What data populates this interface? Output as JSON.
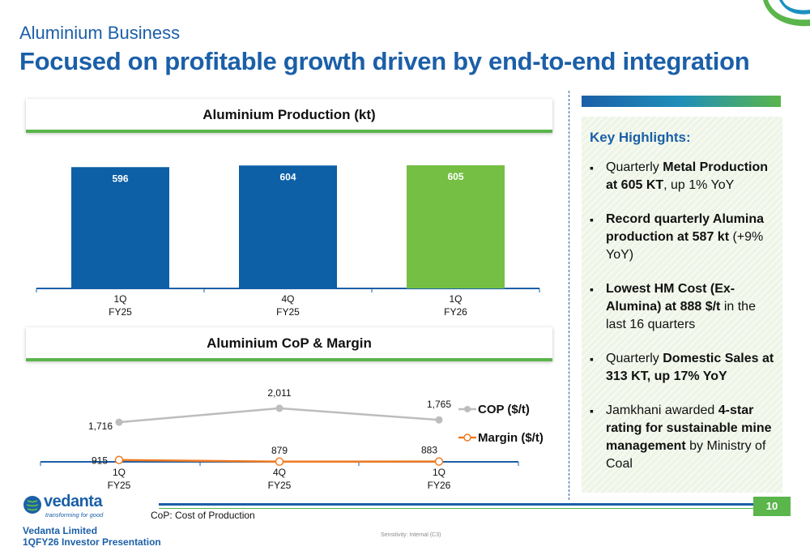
{
  "header": {
    "subtitle": "Aluminium Business",
    "headline": "Focused on profitable growth driven by end-to-end integration"
  },
  "colors": {
    "brand_blue": "#1b5fa8",
    "accent_green": "#5ab54b",
    "bar_blue": "#0d5fa6",
    "bar_green": "#74bf44",
    "cop_line": "#bdbdbd",
    "margin_line": "#f07a22"
  },
  "chart_data": [
    {
      "type": "bar",
      "title": "Aluminium Production (kt)",
      "categories": [
        [
          "1Q",
          "FY25"
        ],
        [
          "4Q",
          "FY25"
        ],
        [
          "1Q",
          "FY26"
        ]
      ],
      "values": [
        596,
        604,
        605
      ],
      "value_labels": [
        "596",
        "604",
        "605"
      ],
      "bar_colors": [
        "#0d5fa6",
        "#0d5fa6",
        "#74bf44"
      ],
      "xlabel": "",
      "ylabel": "",
      "grid": false
    },
    {
      "type": "line",
      "title": "Aluminium CoP & Margin",
      "categories": [
        [
          "1Q",
          "FY25"
        ],
        [
          "4Q",
          "FY25"
        ],
        [
          "1Q",
          "FY26"
        ]
      ],
      "series": [
        {
          "name": "COP ($/t)",
          "values": [
            1716,
            2011,
            1765
          ],
          "labels": [
            "1,716",
            "2,011",
            "1,765"
          ],
          "color": "#bdbdbd",
          "marker": "filled-circle"
        },
        {
          "name": "Margin ($/t)",
          "values": [
            915,
            879,
            883
          ],
          "labels": [
            "915",
            "879",
            "883"
          ],
          "color": "#f07a22",
          "marker": "hollow-circle"
        }
      ],
      "legend_position": "right",
      "grid": false
    }
  ],
  "highlights": {
    "title": "Key Highlights:",
    "items": [
      {
        "pre": "Quarterly ",
        "bold": "Metal Production at 605 KT",
        "post": ", up 1% YoY"
      },
      {
        "pre": "",
        "bold": "Record quarterly Alumina production at 587 kt",
        "post": " (+9% YoY)"
      },
      {
        "pre": "",
        "bold": "Lowest HM Cost (Ex-Alumina) at 888 $/t",
        "post": " in the last 16 quarters"
      },
      {
        "pre": "Quarterly ",
        "bold": "Domestic Sales at 313 KT, up 17% YoY",
        "post": ""
      },
      {
        "pre": "Jamkhani awarded ",
        "bold": "4-star rating for sustainable mine management",
        "post": " by Ministry of Coal"
      }
    ]
  },
  "footer": {
    "footnote": "CoP: Cost of Production",
    "page_number": "10",
    "company_line1": "Vedanta Limited",
    "company_line2": "1QFY26 Investor Presentation",
    "sensitivity": "Sensitivity: Internal (C3)"
  },
  "logo": {
    "word": "vedanta",
    "tagline": "transforming for good"
  }
}
